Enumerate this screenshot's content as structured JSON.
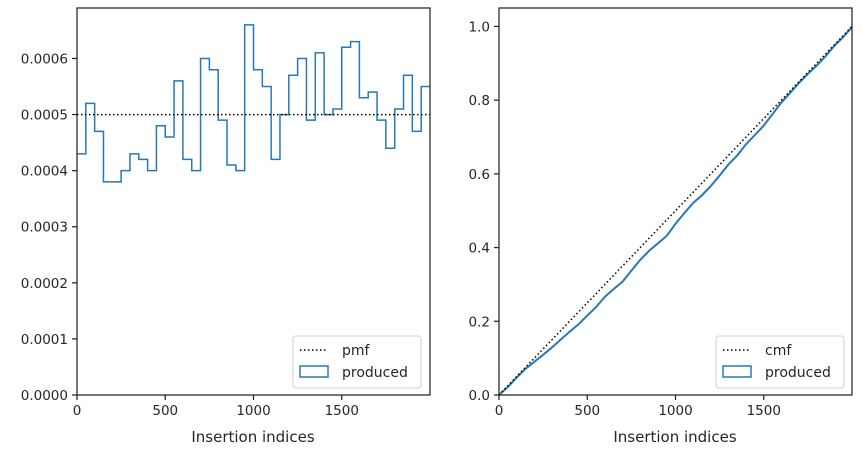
{
  "chart_data": [
    {
      "type": "line",
      "title": "",
      "xlabel": "Insertion indices",
      "ylabel": "",
      "xlim": [
        0,
        2000
      ],
      "ylim": [
        0,
        0.00069
      ],
      "xticks": [
        0,
        500,
        1000,
        1500
      ],
      "xtick_labels": [
        "0",
        "500",
        "1000",
        "1500"
      ],
      "yticks": [
        0,
        0.0001,
        0.0002,
        0.0003,
        0.0004,
        0.0005,
        0.0006
      ],
      "ytick_labels": [
        "0.0000",
        "0.0001",
        "0.0002",
        "0.0003",
        "0.0004",
        "0.0005",
        "0.0006"
      ],
      "grid": false,
      "legend_placement": "lower-right",
      "series": [
        {
          "name": "pmf",
          "style": "dotted",
          "color": "#000000",
          "x": [
            0,
            2000
          ],
          "y": [
            0.0005,
            0.0005
          ]
        },
        {
          "name": "produced",
          "style": "step",
          "color": "#2878b5",
          "bin_edges": [
            0,
            50,
            100,
            150,
            200,
            250,
            300,
            350,
            400,
            450,
            500,
            550,
            600,
            650,
            700,
            750,
            800,
            850,
            900,
            950,
            1000,
            1050,
            1100,
            1150,
            1200,
            1250,
            1300,
            1350,
            1400,
            1450,
            1500,
            1550,
            1600,
            1650,
            1700,
            1750,
            1800,
            1850,
            1900,
            1950,
            2000
          ],
          "values": [
            0.00043,
            0.00052,
            0.00047,
            0.00038,
            0.00038,
            0.0004,
            0.00043,
            0.00042,
            0.0004,
            0.00048,
            0.00046,
            0.00056,
            0.00042,
            0.0004,
            0.0006,
            0.00058,
            0.00049,
            0.00041,
            0.0004,
            0.00066,
            0.00058,
            0.00055,
            0.00042,
            0.0005,
            0.00057,
            0.0006,
            0.00049,
            0.00061,
            0.0005,
            0.00051,
            0.00062,
            0.00063,
            0.00053,
            0.00054,
            0.00049,
            0.00044,
            0.00051,
            0.00057,
            0.00047,
            0.00055
          ]
        }
      ]
    },
    {
      "type": "line",
      "title": "",
      "xlabel": "Insertion indices",
      "ylabel": "",
      "xlim": [
        0,
        2000
      ],
      "ylim": [
        0,
        1.05
      ],
      "xticks": [
        0,
        500,
        1000,
        1500
      ],
      "xtick_labels": [
        "0",
        "500",
        "1000",
        "1500"
      ],
      "yticks": [
        0,
        0.2,
        0.4,
        0.6,
        0.8,
        1.0
      ],
      "ytick_labels": [
        "0.0",
        "0.2",
        "0.4",
        "0.6",
        "0.8",
        "1.0"
      ],
      "grid": false,
      "legend_placement": "lower-right",
      "series": [
        {
          "name": "cmf",
          "style": "dotted",
          "color": "#000000",
          "x": [
            0,
            2000
          ],
          "y": [
            0,
            1.0
          ]
        },
        {
          "name": "produced",
          "style": "line",
          "color": "#2878b5",
          "x": [
            0,
            50,
            100,
            150,
            200,
            250,
            300,
            350,
            400,
            450,
            500,
            550,
            600,
            650,
            700,
            750,
            800,
            850,
            900,
            950,
            1000,
            1050,
            1100,
            1150,
            1200,
            1250,
            1300,
            1350,
            1400,
            1450,
            1500,
            1550,
            1600,
            1650,
            1700,
            1750,
            1800,
            1850,
            1900,
            1950,
            2000
          ],
          "y": [
            0,
            0.0215,
            0.0475,
            0.071,
            0.09,
            0.109,
            0.129,
            0.1505,
            0.1715,
            0.1915,
            0.2155,
            0.2385,
            0.2665,
            0.2875,
            0.3075,
            0.3375,
            0.3665,
            0.391,
            0.4115,
            0.4315,
            0.4645,
            0.4935,
            0.521,
            0.542,
            0.567,
            0.5955,
            0.6255,
            0.65,
            0.6805,
            0.7055,
            0.731,
            0.762,
            0.7935,
            0.82,
            0.847,
            0.8715,
            0.8935,
            0.919,
            0.9475,
            0.971,
            0.9985
          ]
        }
      ]
    }
  ],
  "legend_panel_1": {
    "line_label": "pmf",
    "patch_label": "produced"
  },
  "legend_panel_2": {
    "line_label": "cmf",
    "patch_label": "produced"
  }
}
